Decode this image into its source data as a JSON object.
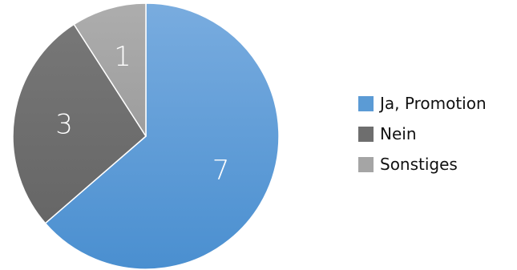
{
  "chart_data": {
    "type": "pie",
    "categories": [
      "Ja, Promotion",
      "Nein",
      "Sonstiges"
    ],
    "values": [
      7,
      3,
      1
    ],
    "data_labels": [
      "7",
      "3",
      "1"
    ],
    "colors": [
      "#5b9bd5",
      "#6e6e6e",
      "#a5a5a5"
    ],
    "start": "12 o'clock",
    "direction": "clockwise",
    "legend": "right"
  }
}
